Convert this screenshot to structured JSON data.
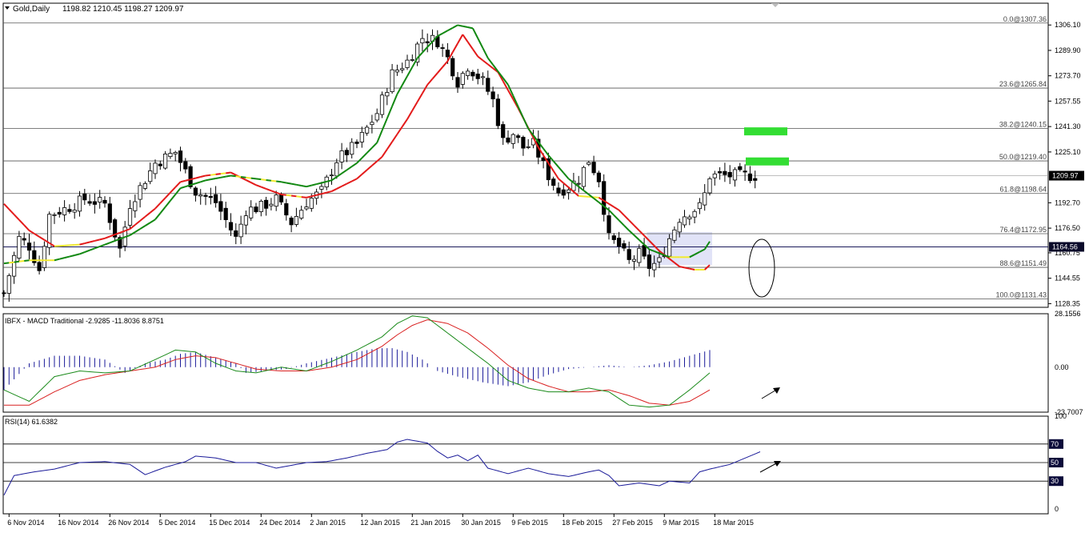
{
  "header": {
    "symbol": "Gold,Daily",
    "ohlc": "1198.82 1210.45 1198.27 1209.97"
  },
  "colors": {
    "bull": "#ffffff",
    "bear": "#000000",
    "ema_fast": "#118811",
    "ema_slow": "#e31a1a",
    "neutral": "#f2ea2e",
    "fib": "#555555",
    "zone": "#d9dcf5",
    "target": "#33dd33",
    "macd_hist": "#1a1a99",
    "macd_line": "#1a8a1a",
    "signal_line": "#d92020",
    "rsi": "#1a1a99"
  },
  "chart_data": [
    {
      "type": "candlestick",
      "title": "Gold,Daily",
      "ylim": [
        1126,
        1320
      ],
      "price_ticks": [
        "1306.10",
        "1289.90",
        "1273.70",
        "1257.55",
        "1241.30",
        "1225.10",
        "1192.70",
        "1176.50",
        "1160.75",
        "1144.55",
        "1128.35"
      ],
      "current_price": "1209.97",
      "highlight_price": "1164.56",
      "fib_levels": [
        {
          "label": "0.0@1307.36",
          "value": 1307.36
        },
        {
          "label": "23.6@1265.84",
          "value": 1265.84
        },
        {
          "label": "38.2@1240.15",
          "value": 1240.15
        },
        {
          "label": "50.0@1219.40",
          "value": 1219.4
        },
        {
          "label": "61.8@1198.64",
          "value": 1198.64
        },
        {
          "label": "76.4@1172.95",
          "value": 1172.95
        },
        {
          "label": "88.6@1151.49",
          "value": 1151.49
        },
        {
          "label": "100.0@1131.43",
          "value": 1131.43
        }
      ],
      "close_waypoints": [
        [
          0,
          1135
        ],
        [
          3,
          1170
        ],
        [
          5,
          1165
        ],
        [
          7,
          1150
        ],
        [
          9,
          1185
        ],
        [
          13,
          1190
        ],
        [
          16,
          1195
        ],
        [
          20,
          1192
        ],
        [
          23,
          1163
        ],
        [
          25,
          1192
        ],
        [
          30,
          1218
        ],
        [
          34,
          1225
        ],
        [
          38,
          1200
        ],
        [
          42,
          1193
        ],
        [
          46,
          1170
        ],
        [
          48,
          1188
        ],
        [
          51,
          1190
        ],
        [
          54,
          1195
        ],
        [
          57,
          1180
        ],
        [
          60,
          1193
        ],
        [
          63,
          1200
        ],
        [
          66,
          1220
        ],
        [
          70,
          1230
        ],
        [
          74,
          1250
        ],
        [
          77,
          1275
        ],
        [
          80,
          1283
        ],
        [
          83,
          1298
        ],
        [
          86,
          1296
        ],
        [
          88,
          1285
        ],
        [
          90,
          1270
        ],
        [
          92,
          1280
        ],
        [
          95,
          1270
        ],
        [
          97,
          1258
        ],
        [
          99,
          1232
        ],
        [
          101,
          1237
        ],
        [
          103,
          1228
        ],
        [
          105,
          1230
        ],
        [
          108,
          1210
        ],
        [
          110,
          1200
        ],
        [
          112,
          1203
        ],
        [
          114,
          1208
        ],
        [
          116,
          1220
        ],
        [
          118,
          1208
        ],
        [
          120,
          1170
        ],
        [
          122,
          1165
        ],
        [
          124,
          1155
        ],
        [
          126,
          1160
        ],
        [
          128,
          1152
        ],
        [
          130,
          1155
        ],
        [
          132,
          1170
        ],
        [
          134,
          1183
        ],
        [
          136,
          1187
        ],
        [
          138,
          1190
        ],
        [
          139,
          1198
        ],
        [
          140,
          1210
        ]
      ],
      "ema_fast_waypoints": [
        [
          0,
          1154
        ],
        [
          5,
          1156
        ],
        [
          10,
          1156
        ],
        [
          15,
          1160
        ],
        [
          20,
          1166
        ],
        [
          25,
          1172
        ],
        [
          30,
          1182
        ],
        [
          35,
          1202
        ],
        [
          40,
          1207
        ],
        [
          45,
          1210
        ],
        [
          50,
          1208
        ],
        [
          55,
          1206
        ],
        [
          60,
          1203
        ],
        [
          65,
          1207
        ],
        [
          70,
          1218
        ],
        [
          74,
          1231
        ],
        [
          78,
          1262
        ],
        [
          82,
          1285
        ],
        [
          86,
          1299
        ],
        [
          90,
          1306
        ],
        [
          93,
          1304
        ],
        [
          96,
          1285
        ],
        [
          100,
          1268
        ],
        [
          104,
          1240
        ],
        [
          108,
          1223
        ],
        [
          112,
          1208
        ],
        [
          116,
          1198
        ],
        [
          120,
          1188
        ],
        [
          124,
          1175
        ],
        [
          128,
          1163
        ],
        [
          132,
          1158
        ],
        [
          136,
          1158
        ],
        [
          139,
          1163
        ],
        [
          140,
          1168
        ]
      ],
      "ema_slow_waypoints": [
        [
          0,
          1192
        ],
        [
          5,
          1175
        ],
        [
          10,
          1165
        ],
        [
          15,
          1166
        ],
        [
          20,
          1170
        ],
        [
          25,
          1176
        ],
        [
          30,
          1189
        ],
        [
          35,
          1206
        ],
        [
          40,
          1210
        ],
        [
          45,
          1212
        ],
        [
          50,
          1204
        ],
        [
          55,
          1198
        ],
        [
          60,
          1196
        ],
        [
          65,
          1200
        ],
        [
          70,
          1208
        ],
        [
          75,
          1222
        ],
        [
          80,
          1246
        ],
        [
          84,
          1268
        ],
        [
          88,
          1283
        ],
        [
          91,
          1300
        ],
        [
          94,
          1286
        ],
        [
          98,
          1276
        ],
        [
          102,
          1253
        ],
        [
          106,
          1228
        ],
        [
          110,
          1208
        ],
        [
          114,
          1197
        ],
        [
          118,
          1196
        ],
        [
          122,
          1188
        ],
        [
          126,
          1175
        ],
        [
          130,
          1162
        ],
        [
          134,
          1152
        ],
        [
          137,
          1150
        ],
        [
          139,
          1150
        ],
        [
          140,
          1153
        ]
      ],
      "x_labels": [
        {
          "label": "6 Nov 2014",
          "i": 1
        },
        {
          "label": "16 Nov 2014",
          "i": 11
        },
        {
          "label": "26 Nov 2014",
          "i": 21
        },
        {
          "label": "5 Dec 2014",
          "i": 31
        },
        {
          "label": "15 Dec 2014",
          "i": 41
        },
        {
          "label": "24 Dec 2014",
          "i": 51
        },
        {
          "label": "2 Jan 2015",
          "i": 61
        },
        {
          "label": "12 Jan 2015",
          "i": 71
        },
        {
          "label": "21 Jan 2015",
          "i": 81
        },
        {
          "label": "30 Jan 2015",
          "i": 91
        },
        {
          "label": "9 Feb 2015",
          "i": 101
        },
        {
          "label": "18 Feb 2015",
          "i": 111
        },
        {
          "label": "27 Feb 2015",
          "i": 121
        },
        {
          "label": "9 Mar 2015",
          "i": 131
        },
        {
          "label": "18 Mar 2015",
          "i": 141
        }
      ]
    },
    {
      "type": "macd",
      "title": "IBFX - MACD Traditional -2.9285 -11.8036 8.8751",
      "ylim": [
        -23.7007,
        28.1556
      ],
      "ticks": [
        "28.1556",
        "0.00",
        "-23.7007"
      ],
      "hist_waypoints": [
        [
          0,
          -12
        ],
        [
          5,
          2
        ],
        [
          10,
          6
        ],
        [
          15,
          6
        ],
        [
          20,
          4
        ],
        [
          24,
          -3
        ],
        [
          28,
          2
        ],
        [
          32,
          4
        ],
        [
          35,
          7
        ],
        [
          38,
          8
        ],
        [
          42,
          5
        ],
        [
          46,
          2
        ],
        [
          48,
          -3
        ],
        [
          52,
          -2
        ],
        [
          56,
          -1
        ],
        [
          60,
          2
        ],
        [
          65,
          5
        ],
        [
          70,
          8
        ],
        [
          74,
          10
        ],
        [
          77,
          10
        ],
        [
          80,
          8
        ],
        [
          83,
          4
        ],
        [
          86,
          -2
        ],
        [
          90,
          -5
        ],
        [
          95,
          -8
        ],
        [
          100,
          -10
        ],
        [
          104,
          -8
        ],
        [
          108,
          -4
        ],
        [
          112,
          -1
        ],
        [
          116,
          0
        ],
        [
          120,
          1
        ],
        [
          124,
          0
        ],
        [
          128,
          1
        ],
        [
          132,
          3
        ],
        [
          136,
          6
        ],
        [
          140,
          9
        ]
      ],
      "macd_waypoints": [
        [
          0,
          -12
        ],
        [
          5,
          -18
        ],
        [
          10,
          -5
        ],
        [
          15,
          -2
        ],
        [
          20,
          -3
        ],
        [
          25,
          -2
        ],
        [
          30,
          4
        ],
        [
          34,
          9
        ],
        [
          38,
          8
        ],
        [
          42,
          2
        ],
        [
          46,
          -2
        ],
        [
          50,
          -3
        ],
        [
          55,
          0
        ],
        [
          60,
          -2
        ],
        [
          65,
          3
        ],
        [
          70,
          9
        ],
        [
          75,
          16
        ],
        [
          78,
          23
        ],
        [
          81,
          27
        ],
        [
          84,
          26
        ],
        [
          88,
          18
        ],
        [
          92,
          10
        ],
        [
          96,
          2
        ],
        [
          100,
          -7
        ],
        [
          104,
          -11
        ],
        [
          108,
          -13
        ],
        [
          112,
          -13
        ],
        [
          116,
          -11
        ],
        [
          120,
          -13
        ],
        [
          124,
          -20
        ],
        [
          128,
          -21
        ],
        [
          132,
          -20
        ],
        [
          136,
          -12
        ],
        [
          140,
          -3
        ]
      ],
      "signal_waypoints": [
        [
          0,
          -20
        ],
        [
          5,
          -20
        ],
        [
          10,
          -13
        ],
        [
          15,
          -7
        ],
        [
          20,
          -4
        ],
        [
          25,
          -2
        ],
        [
          30,
          0
        ],
        [
          34,
          4
        ],
        [
          38,
          6
        ],
        [
          42,
          5
        ],
        [
          46,
          2
        ],
        [
          50,
          -1
        ],
        [
          55,
          -2
        ],
        [
          60,
          -2
        ],
        [
          65,
          0
        ],
        [
          70,
          4
        ],
        [
          75,
          11
        ],
        [
          78,
          17
        ],
        [
          81,
          22
        ],
        [
          84,
          25
        ],
        [
          88,
          23
        ],
        [
          92,
          18
        ],
        [
          96,
          10
        ],
        [
          100,
          1
        ],
        [
          104,
          -6
        ],
        [
          108,
          -10
        ],
        [
          112,
          -13
        ],
        [
          116,
          -13
        ],
        [
          120,
          -12
        ],
        [
          124,
          -15
        ],
        [
          128,
          -19
        ],
        [
          132,
          -20
        ],
        [
          136,
          -18
        ],
        [
          140,
          -12
        ]
      ]
    },
    {
      "type": "rsi",
      "title": "RSI(14) 61.6382",
      "ylim": [
        0,
        100
      ],
      "ticks": [
        "100",
        "70",
        "50",
        "30",
        "0"
      ],
      "levels": [
        "70",
        "50",
        "30"
      ],
      "rsi_waypoints": [
        [
          0,
          15
        ],
        [
          2,
          36
        ],
        [
          6,
          40
        ],
        [
          10,
          43
        ],
        [
          15,
          50
        ],
        [
          20,
          51
        ],
        [
          25,
          48
        ],
        [
          28,
          37
        ],
        [
          32,
          45
        ],
        [
          36,
          51
        ],
        [
          38,
          57
        ],
        [
          42,
          55
        ],
        [
          46,
          50
        ],
        [
          50,
          50
        ],
        [
          54,
          44
        ],
        [
          58,
          48
        ],
        [
          60,
          50
        ],
        [
          64,
          51
        ],
        [
          68,
          55
        ],
        [
          72,
          60
        ],
        [
          76,
          64
        ],
        [
          78,
          72
        ],
        [
          80,
          75
        ],
        [
          82,
          73
        ],
        [
          84,
          71
        ],
        [
          86,
          62
        ],
        [
          88,
          55
        ],
        [
          90,
          58
        ],
        [
          92,
          52
        ],
        [
          94,
          58
        ],
        [
          96,
          44
        ],
        [
          100,
          38
        ],
        [
          104,
          44
        ],
        [
          108,
          38
        ],
        [
          112,
          35
        ],
        [
          116,
          40
        ],
        [
          118,
          42
        ],
        [
          120,
          36
        ],
        [
          122,
          25
        ],
        [
          126,
          28
        ],
        [
          130,
          25
        ],
        [
          132,
          30
        ],
        [
          136,
          28
        ],
        [
          138,
          40
        ],
        [
          140,
          43
        ],
        [
          144,
          48
        ],
        [
          150,
          61.6
        ]
      ]
    }
  ]
}
